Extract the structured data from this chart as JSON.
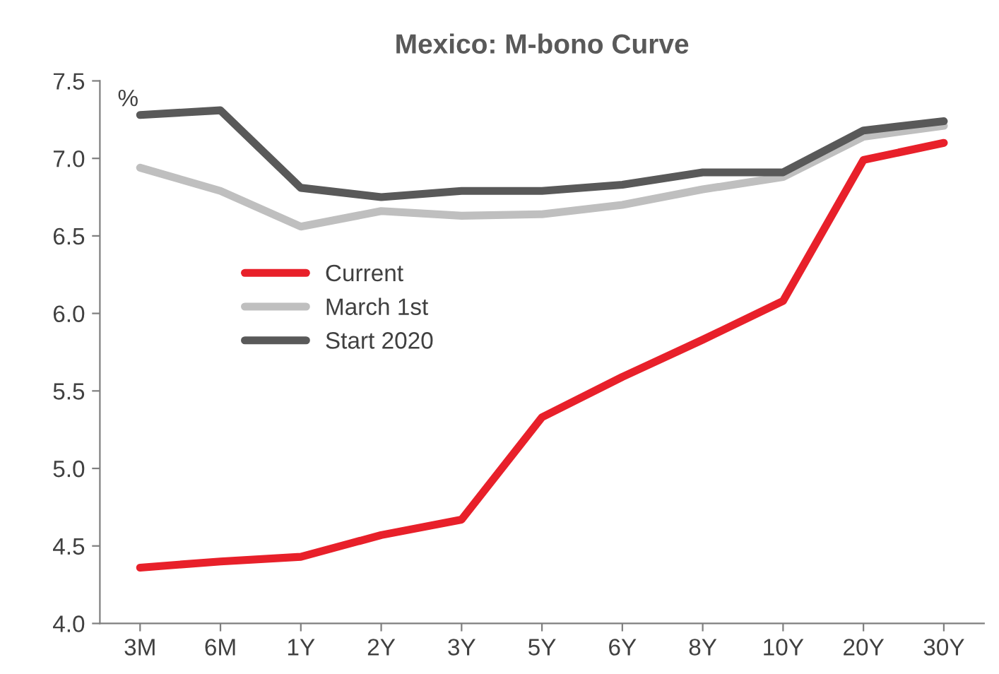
{
  "chart_data": {
    "type": "line",
    "title": "Mexico: M-bono Curve",
    "ylabel": "%",
    "categories": [
      "3M",
      "6M",
      "1Y",
      "2Y",
      "3Y",
      "5Y",
      "6Y",
      "8Y",
      "10Y",
      "20Y",
      "30Y"
    ],
    "series": [
      {
        "name": "Current",
        "color": "#e8202a",
        "values": [
          4.36,
          4.4,
          4.43,
          4.57,
          4.67,
          5.33,
          5.59,
          5.83,
          6.08,
          6.99,
          7.1
        ]
      },
      {
        "name": "March 1st",
        "color": "#bfbfbf",
        "values": [
          6.94,
          6.79,
          6.56,
          6.66,
          6.63,
          6.64,
          6.7,
          6.8,
          6.88,
          7.14,
          7.21
        ]
      },
      {
        "name": "Start 2020",
        "color": "#595959",
        "values": [
          7.28,
          7.31,
          6.81,
          6.75,
          6.79,
          6.79,
          6.83,
          6.91,
          6.91,
          7.18,
          7.24
        ]
      }
    ],
    "ylim": [
      4.0,
      7.5
    ],
    "yticks": [
      {
        "value": 4.0,
        "label": "4.0"
      },
      {
        "value": 4.5,
        "label": "4.5"
      },
      {
        "value": 5.0,
        "label": "5.0"
      },
      {
        "value": 5.5,
        "label": "5.5"
      },
      {
        "value": 6.0,
        "label": "6.0"
      },
      {
        "value": 6.5,
        "label": "6.5"
      },
      {
        "value": 7.0,
        "label": "7.0"
      },
      {
        "value": 7.5,
        "label": "7.5"
      }
    ],
    "grid": false,
    "legend": "center left",
    "marker": "none",
    "line_style": "solid"
  }
}
